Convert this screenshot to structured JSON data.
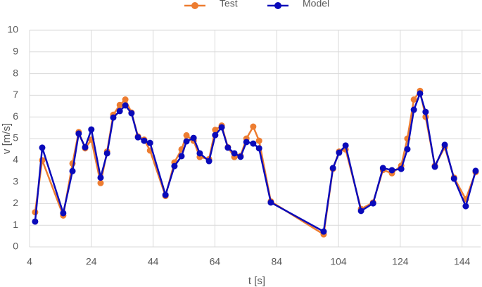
{
  "chart_data": {
    "type": "line",
    "x_label": "t [s]",
    "y_label": "v [m/s]",
    "xlim": [
      4,
      150
    ],
    "xticks": [
      4,
      24,
      44,
      64,
      84,
      104,
      124,
      144
    ],
    "ylim": [
      0,
      10
    ],
    "yticks": [
      0,
      1,
      2,
      3,
      4,
      5,
      6,
      7,
      8,
      9,
      10
    ],
    "grid": true,
    "legend": "top",
    "x": [
      5.8,
      8.1,
      14.9,
      17.9,
      19.9,
      22.0,
      24.0,
      27.0,
      29.1,
      31.1,
      33.2,
      35.0,
      37.0,
      39.1,
      41.1,
      43.0,
      48.0,
      50.9,
      53.2,
      54.8,
      57.1,
      59.1,
      62.1,
      64.1,
      66.2,
      68.2,
      70.3,
      72.3,
      74.2,
      76.4,
      78.3,
      82.1,
      99.2,
      102.2,
      104.2,
      106.3,
      111.3,
      115.2,
      118.4,
      121.3,
      124.3,
      126.3,
      128.4,
      130.4,
      132.2,
      135.2,
      138.4,
      141.4,
      145.2,
      148.4
    ],
    "series": [
      {
        "name": "Test",
        "color": "#ED7D31",
        "values": [
          1.6,
          4.0,
          1.45,
          3.85,
          5.3,
          4.55,
          4.95,
          2.95,
          4.4,
          6.1,
          6.55,
          6.8,
          6.2,
          5.1,
          4.95,
          4.45,
          2.35,
          3.9,
          4.5,
          5.15,
          4.9,
          4.15,
          4.05,
          5.4,
          5.6,
          4.6,
          4.15,
          4.2,
          5.0,
          5.55,
          4.9,
          2.1,
          0.58,
          3.6,
          4.4,
          4.5,
          1.75,
          2.05,
          3.55,
          3.4,
          3.75,
          5.0,
          6.8,
          7.2,
          6.0,
          3.75,
          4.6,
          3.2,
          2.2,
          3.45
        ]
      },
      {
        "name": "Model",
        "color": "#0A0ABA",
        "values": [
          1.17,
          4.58,
          1.56,
          3.5,
          5.23,
          4.6,
          5.42,
          3.2,
          4.32,
          5.97,
          6.27,
          6.53,
          6.17,
          5.06,
          4.9,
          4.8,
          2.4,
          3.73,
          4.19,
          4.87,
          5.03,
          4.32,
          3.96,
          5.16,
          5.52,
          4.58,
          4.32,
          4.16,
          4.84,
          4.77,
          4.55,
          2.05,
          0.71,
          3.64,
          4.35,
          4.68,
          1.66,
          2.01,
          3.64,
          3.54,
          3.6,
          4.51,
          6.33,
          7.08,
          6.23,
          3.7,
          4.71,
          3.15,
          1.88,
          3.51
        ]
      }
    ]
  }
}
